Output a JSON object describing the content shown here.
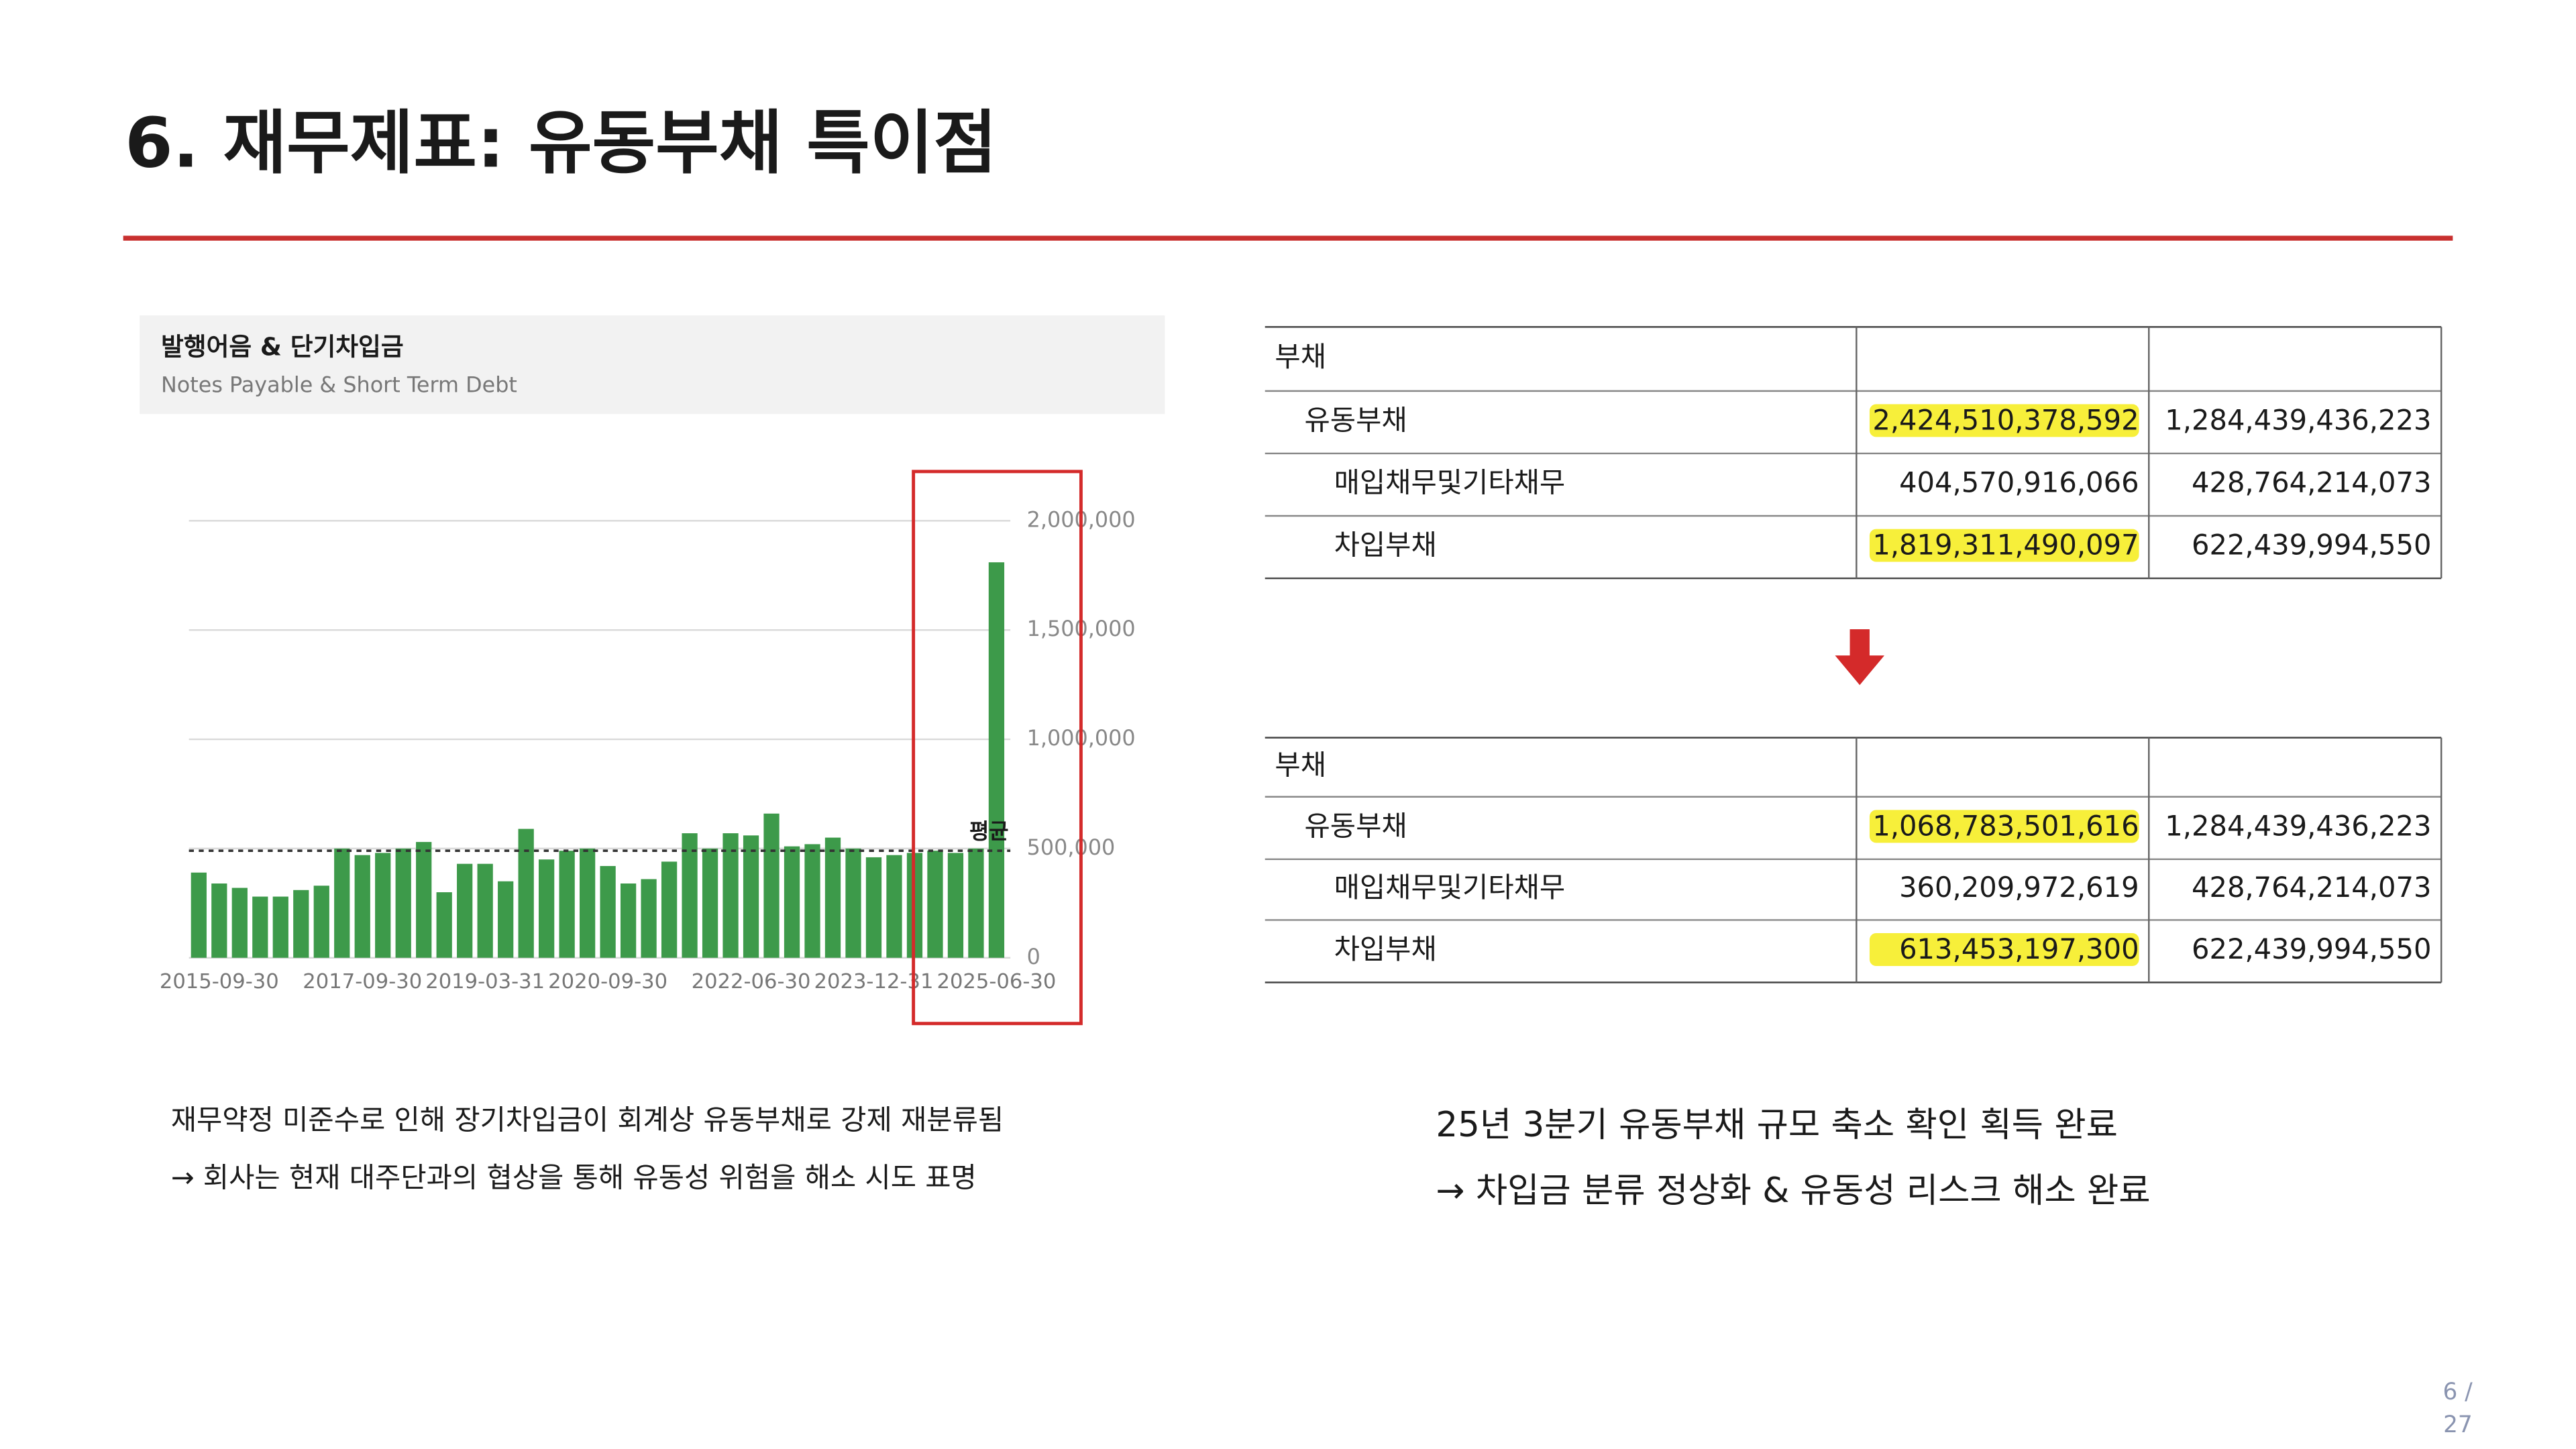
{
  "title": "6. 재무제표: 유동부채 특이점",
  "chart_header": {
    "title": "발행어음 & 단기차입금",
    "subtitle": "Notes Payable & Short Term Debt"
  },
  "chart_data": {
    "type": "bar",
    "categories": [
      null,
      "2015-09-30",
      null,
      null,
      null,
      null,
      null,
      null,
      "2017-09-30",
      null,
      null,
      null,
      null,
      null,
      "2019-03-31",
      null,
      null,
      null,
      null,
      null,
      "2020-09-30",
      null,
      null,
      null,
      null,
      null,
      null,
      "2022-06-30",
      null,
      null,
      null,
      null,
      null,
      "2023-12-31",
      null,
      null,
      null,
      null,
      null,
      "2025-06-30"
    ],
    "values": [
      390000,
      340000,
      320000,
      280000,
      280000,
      310000,
      330000,
      500000,
      470000,
      480000,
      500000,
      530000,
      300000,
      430000,
      430000,
      350000,
      590000,
      450000,
      490000,
      500000,
      420000,
      340000,
      360000,
      440000,
      570000,
      500000,
      570000,
      560000,
      660000,
      510000,
      520000,
      550000,
      500000,
      460000,
      470000,
      480000,
      490000,
      480000,
      500000,
      1810000
    ],
    "color": "#3d9a4a",
    "ylim": [
      0,
      2000000
    ],
    "yticks": [
      {
        "value": 0,
        "label": "0"
      },
      {
        "value": 500000,
        "label": "500,000"
      },
      {
        "value": 1000000,
        "label": "1,000,000"
      },
      {
        "value": 1500000,
        "label": "1,500,000"
      },
      {
        "value": 2000000,
        "label": "2,000,000"
      }
    ],
    "grid": true,
    "average": {
      "label": "평균",
      "value": 490000
    }
  },
  "table_before": {
    "rows": [
      [
        "부채"
      ],
      [
        "유동부채",
        "2,424,510,378,592",
        "1,284,439,436,223"
      ],
      [
        "매입채무및기타채무",
        "404,570,916,066",
        "428,764,214,073"
      ],
      [
        "차입부채",
        "1,819,311,490,097",
        "622,439,994,550"
      ]
    ]
  },
  "table_after": {
    "rows": [
      [
        "부채"
      ],
      [
        "유동부채",
        "1,068,783,501,616",
        "1,284,439,436,223"
      ],
      [
        "매입채무및기타채무",
        "360,209,972,619",
        "428,764,214,073"
      ],
      [
        "차입부채",
        "613,453,197,300",
        "622,439,994,550"
      ]
    ]
  },
  "caption_left": [
    "재무약정 미준수로 인해 장기차입금이 회계상 유동부채로 강제 재분류됨",
    "→ 회사는 현재 대주단과의 협상을 통해 유동성 위험을 해소 시도 표명"
  ],
  "caption_right": [
    "25년 3분기 유동부채 규모 축소 확인 획득 완료",
    "→ 차입금 분류 정상화 & 유동성 리스크 해소 완료"
  ],
  "page_number": [
    "6 /",
    "27"
  ]
}
